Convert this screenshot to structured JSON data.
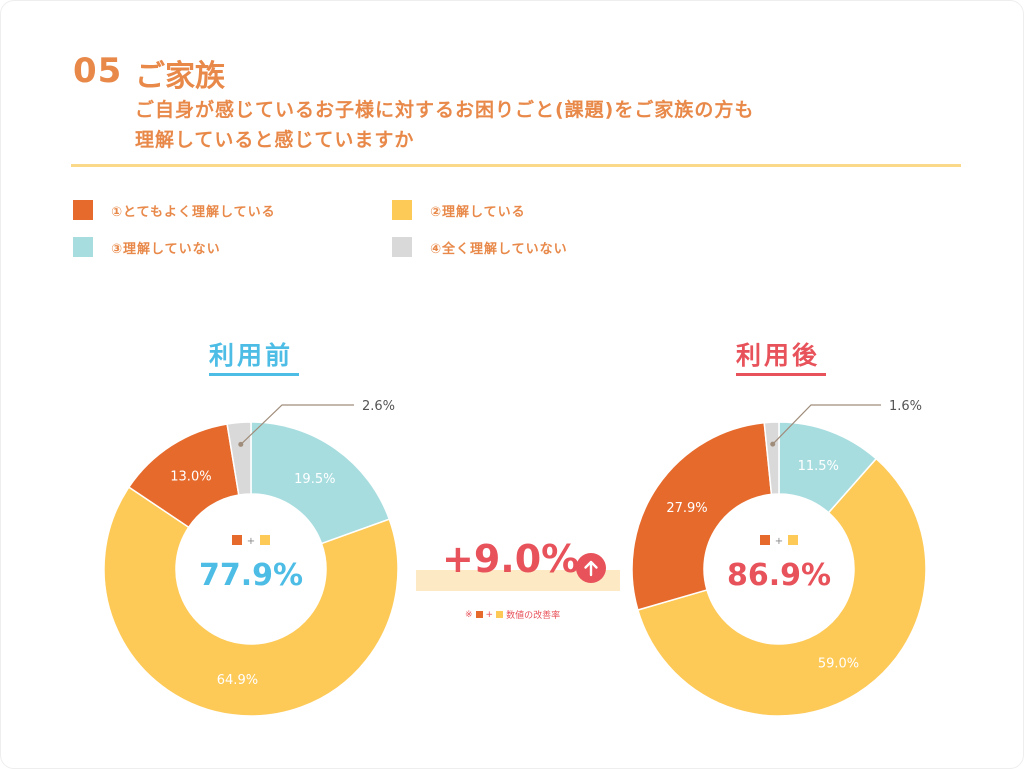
{
  "header": {
    "number": "05",
    "title": "ご家族",
    "question_line1": "ご自身が感じているお子様に対するお困りごと(課題)をご家族の方も",
    "question_line2": "理解していると感じていますか"
  },
  "legend": [
    {
      "label": "①とてもよく理解している",
      "color": "#e66a2c"
    },
    {
      "label": "②理解している",
      "color": "#fdc957"
    },
    {
      "label": "③理解していない",
      "color": "#a8dde0"
    },
    {
      "label": "④全く理解していない",
      "color": "#d9d9d9"
    }
  ],
  "colors": {
    "before_accent": "#4dbde6",
    "after_accent": "#e8525a",
    "callout_line": "#a08c7a"
  },
  "middle": {
    "change": "+9.0%",
    "note_prefix": "※",
    "note_plus": "+",
    "note_suffix": "数値の改善率"
  },
  "chart_data": [
    {
      "type": "pie",
      "title": "利用前",
      "center_plus": "+",
      "center_value": "77.9%",
      "slices": [
        {
          "category": "①とてもよく理解している",
          "value": 13.0,
          "label": "13.0%"
        },
        {
          "category": "②理解している",
          "value": 64.9,
          "label": "64.9%"
        },
        {
          "category": "③理解していない",
          "value": 19.5,
          "label": "19.5%"
        },
        {
          "category": "④全く理解していない",
          "value": 2.6,
          "label": "2.6%"
        }
      ]
    },
    {
      "type": "pie",
      "title": "利用後",
      "center_plus": "+",
      "center_value": "86.9%",
      "slices": [
        {
          "category": "①とてもよく理解している",
          "value": 27.9,
          "label": "27.9%"
        },
        {
          "category": "②理解している",
          "value": 59.0,
          "label": "59.0%"
        },
        {
          "category": "③理解していない",
          "value": 11.5,
          "label": "11.5%"
        },
        {
          "category": "④全く理解していない",
          "value": 1.6,
          "label": "1.6%"
        }
      ]
    }
  ]
}
